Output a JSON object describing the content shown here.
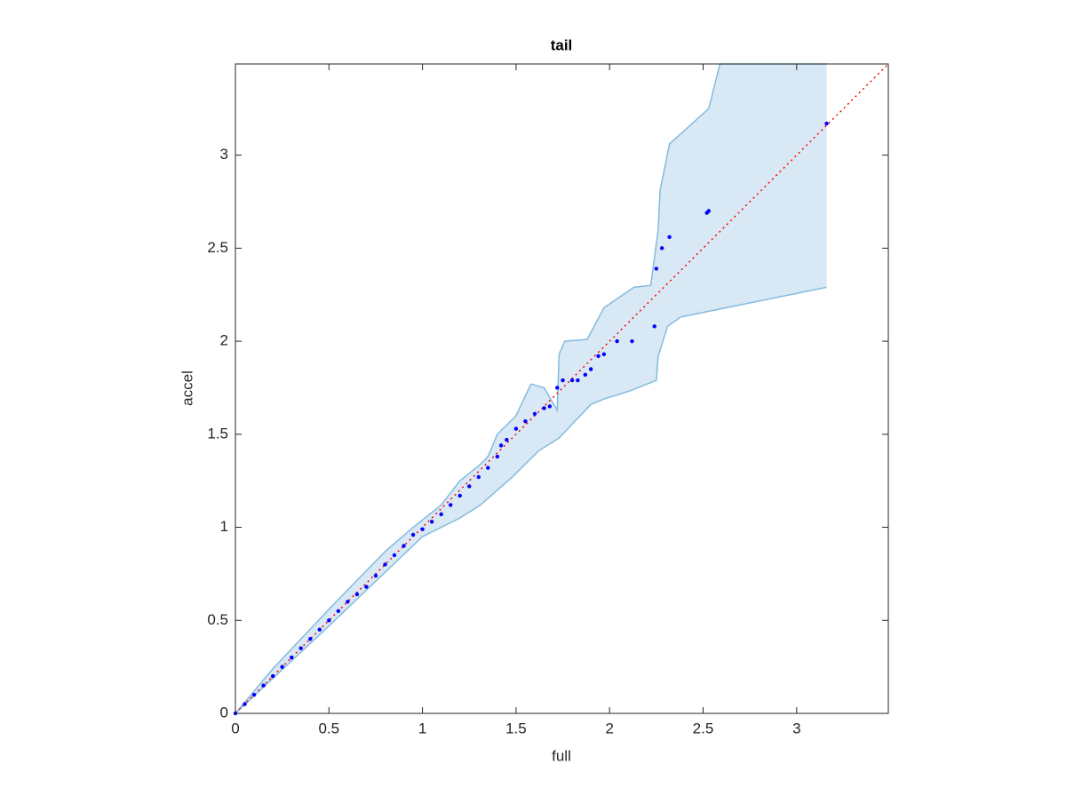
{
  "chart_data": {
    "type": "qq-band",
    "title": "tail",
    "xlabel": "full",
    "ylabel": "accel",
    "xlim": [
      0,
      3.49
    ],
    "ylim": [
      0,
      3.49
    ],
    "xticks": [
      0,
      0.5,
      1,
      1.5,
      2,
      2.5,
      3
    ],
    "yticks": [
      0,
      0.5,
      1,
      1.5,
      2,
      2.5,
      3
    ],
    "band": {
      "fill": "#d8e8f4",
      "edge": "#84bbdf",
      "upper": {
        "x": [
          0,
          0.2,
          0.5,
          0.8,
          0.95,
          1.1,
          1.2,
          1.3,
          1.35,
          1.4,
          1.5,
          1.58,
          1.65,
          1.72,
          1.73,
          1.76,
          1.88,
          1.97,
          2.13,
          2.22,
          2.26,
          2.27,
          2.32,
          2.53,
          2.59,
          3.16
        ],
        "y": [
          0,
          0.24,
          0.56,
          0.87,
          1.0,
          1.12,
          1.25,
          1.33,
          1.38,
          1.5,
          1.6,
          1.77,
          1.75,
          1.63,
          1.93,
          2.0,
          2.01,
          2.18,
          2.29,
          2.3,
          2.6,
          2.81,
          3.06,
          3.25,
          3.49,
          3.49
        ]
      },
      "lower": {
        "x": [
          0,
          0.5,
          1.0,
          1.2,
          1.31,
          1.48,
          1.62,
          1.73,
          1.9,
          1.97,
          2.1,
          2.25,
          2.26,
          2.31,
          2.38,
          3.16
        ],
        "y": [
          0,
          0.47,
          0.95,
          1.05,
          1.12,
          1.27,
          1.41,
          1.48,
          1.66,
          1.69,
          1.73,
          1.79,
          1.92,
          2.08,
          2.13,
          2.29
        ]
      }
    },
    "reference_line": {
      "x": [
        0,
        3.49
      ],
      "y": [
        0,
        3.49
      ],
      "color": "#ff0000"
    },
    "points": {
      "color": "#0000ff",
      "x": [
        0,
        0.05,
        0.1,
        0.15,
        0.2,
        0.25,
        0.3,
        0.35,
        0.4,
        0.45,
        0.5,
        0.55,
        0.6,
        0.65,
        0.7,
        0.75,
        0.8,
        0.85,
        0.9,
        0.95,
        1.0,
        1.05,
        1.1,
        1.15,
        1.2,
        1.25,
        1.3,
        1.35,
        1.4,
        1.42,
        1.45,
        1.5,
        1.55,
        1.6,
        1.65,
        1.68,
        1.72,
        1.75,
        1.8,
        1.83,
        1.87,
        1.9,
        1.94,
        1.97,
        2.04,
        2.12,
        2.25,
        2.24,
        2.28,
        2.32,
        2.52,
        2.53,
        3.16
      ],
      "y": [
        0,
        0.05,
        0.1,
        0.15,
        0.2,
        0.25,
        0.3,
        0.35,
        0.4,
        0.45,
        0.5,
        0.55,
        0.6,
        0.64,
        0.68,
        0.74,
        0.8,
        0.85,
        0.9,
        0.96,
        0.99,
        1.03,
        1.07,
        1.12,
        1.17,
        1.22,
        1.27,
        1.32,
        1.38,
        1.44,
        1.47,
        1.53,
        1.57,
        1.61,
        1.64,
        1.65,
        1.75,
        1.79,
        1.79,
        1.79,
        1.82,
        1.85,
        1.92,
        1.93,
        2.0,
        2.0,
        2.39,
        2.08,
        2.5,
        2.56,
        2.69,
        2.7,
        3.17
      ]
    }
  }
}
